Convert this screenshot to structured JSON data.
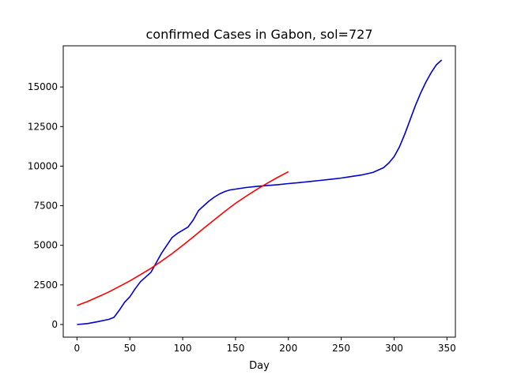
{
  "chart_data": {
    "type": "line",
    "title": "confirmed Cases in Gabon, sol=727",
    "xlabel": "Day",
    "ylabel": "",
    "xlim": [
      -13,
      358
    ],
    "ylim": [
      -800,
      17600
    ],
    "xticks": [
      0,
      50,
      100,
      150,
      200,
      250,
      300,
      350
    ],
    "yticks": [
      0,
      2500,
      5000,
      7500,
      10000,
      12500,
      15000
    ],
    "grid": false,
    "legend": "none",
    "series": [
      {
        "color": "#0000cc",
        "x": [
          0,
          10,
          20,
          30,
          35,
          40,
          45,
          50,
          55,
          60,
          65,
          70,
          75,
          80,
          85,
          90,
          95,
          100,
          105,
          110,
          115,
          120,
          125,
          130,
          135,
          140,
          145,
          150,
          160,
          170,
          180,
          190,
          200,
          210,
          220,
          230,
          240,
          250,
          260,
          270,
          280,
          290,
          295,
          300,
          305,
          310,
          315,
          320,
          325,
          330,
          335,
          340,
          345
        ],
        "y": [
          0,
          60,
          180,
          320,
          450,
          900,
          1400,
          1750,
          2250,
          2700,
          3000,
          3300,
          3900,
          4500,
          5000,
          5500,
          5750,
          5950,
          6150,
          6600,
          7200,
          7500,
          7800,
          8050,
          8250,
          8400,
          8500,
          8550,
          8650,
          8720,
          8780,
          8830,
          8900,
          8960,
          9030,
          9100,
          9170,
          9250,
          9350,
          9450,
          9600,
          9900,
          10200,
          10600,
          11200,
          12000,
          12900,
          13800,
          14600,
          15300,
          15900,
          16400,
          16700
        ]
      },
      {
        "color": "#ff0000",
        "x": [
          0,
          10,
          20,
          30,
          40,
          50,
          60,
          70,
          80,
          90,
          100,
          110,
          120,
          130,
          140,
          150,
          160,
          170,
          180,
          190,
          200
        ],
        "y": [
          1200,
          1450,
          1750,
          2050,
          2400,
          2750,
          3150,
          3550,
          4000,
          4480,
          5000,
          5530,
          6080,
          6620,
          7150,
          7650,
          8100,
          8530,
          8920,
          9300,
          9650
        ]
      }
    ]
  }
}
